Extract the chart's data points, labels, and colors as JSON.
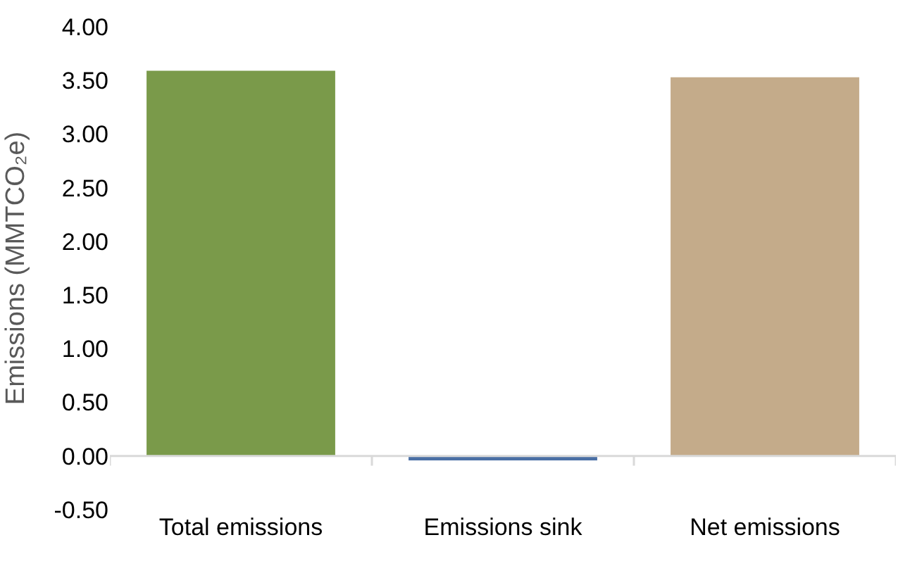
{
  "chart_data": {
    "type": "bar",
    "ylabel": "Emissions (MMTCO₂e)",
    "categories": [
      "Total emissions",
      "Emissions sink",
      "Net emissions"
    ],
    "values": [
      3.59,
      -0.04,
      3.53
    ],
    "colors": [
      "#7a9a4a",
      "#4a6fa5",
      "#c4ab8a"
    ],
    "ylim": [
      -0.5,
      4.0
    ],
    "yticks": [
      {
        "value": -0.5,
        "label": "-0.50"
      },
      {
        "value": 0,
        "label": "0.00"
      },
      {
        "value": 0.5,
        "label": "0.50"
      },
      {
        "value": 1.0,
        "label": "1.00"
      },
      {
        "value": 1.5,
        "label": "1.50"
      },
      {
        "value": 2.0,
        "label": "2.00"
      },
      {
        "value": 2.5,
        "label": "2.50"
      },
      {
        "value": 3.0,
        "label": "3.00"
      },
      {
        "value": 3.5,
        "label": "3.50"
      },
      {
        "value": 4.0,
        "label": "4.00"
      }
    ],
    "relative": false
  }
}
